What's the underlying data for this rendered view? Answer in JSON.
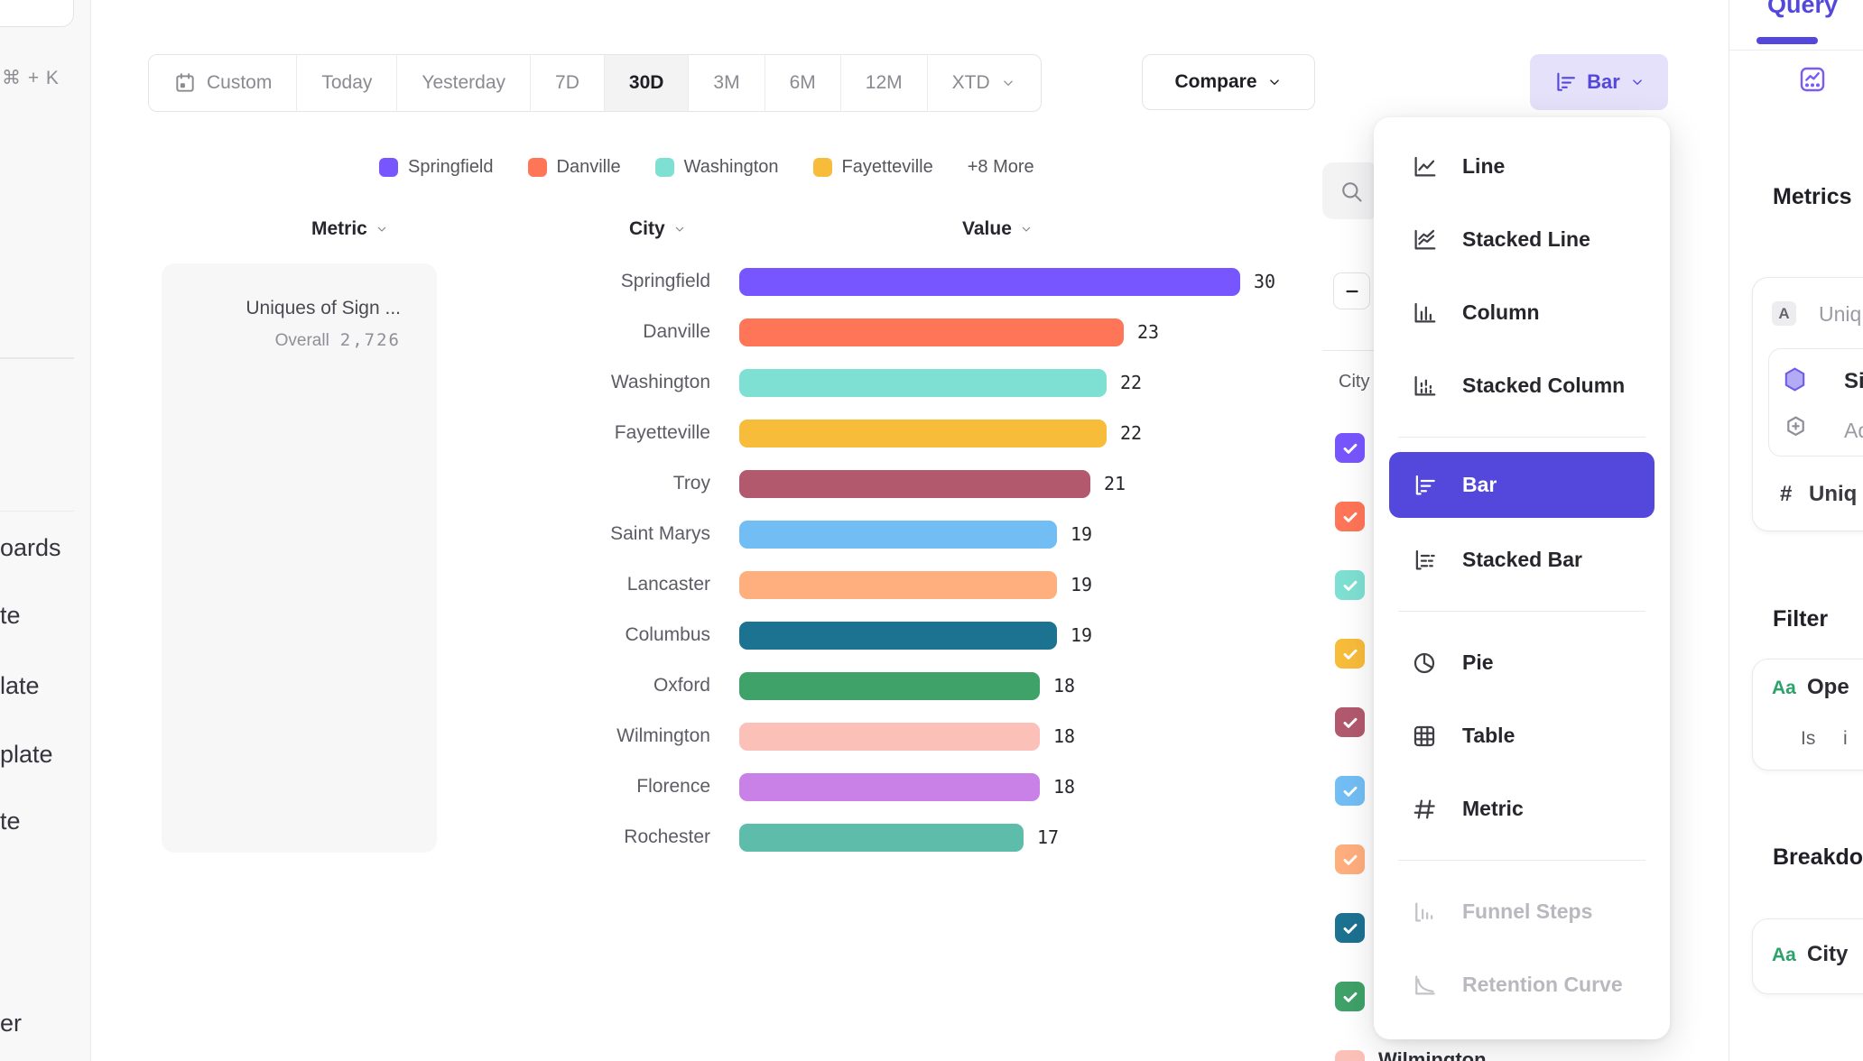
{
  "left_sidebar": {
    "shortcut_hint": "⌘ + K",
    "truncated_items": [
      "oards",
      "te",
      "late",
      "plate",
      "te",
      "er"
    ]
  },
  "toolbar": {
    "date_ranges": [
      {
        "label": "Custom",
        "icon": "calendar",
        "selected": false,
        "chevron": false
      },
      {
        "label": "Today",
        "selected": false,
        "chevron": false
      },
      {
        "label": "Yesterday",
        "selected": false,
        "chevron": false
      },
      {
        "label": "7D",
        "selected": false,
        "chevron": false
      },
      {
        "label": "30D",
        "selected": true,
        "chevron": false
      },
      {
        "label": "3M",
        "selected": false,
        "chevron": false
      },
      {
        "label": "6M",
        "selected": false,
        "chevron": false
      },
      {
        "label": "12M",
        "selected": false,
        "chevron": false
      },
      {
        "label": "XTD",
        "selected": false,
        "chevron": true
      }
    ],
    "compare_label": "Compare",
    "chart_type_label": "Bar"
  },
  "legend": {
    "items": [
      {
        "label": "Springfield",
        "color": "#7856FF"
      },
      {
        "label": "Danville",
        "color": "#FF7557"
      },
      {
        "label": "Washington",
        "color": "#7EE0D2"
      },
      {
        "label": "Fayetteville",
        "color": "#F8BC3B"
      }
    ],
    "more_label": "+8 More"
  },
  "columns": {
    "metric": "Metric",
    "city": "City",
    "value": "Value"
  },
  "metric_card": {
    "title": "Uniques of Sign ...",
    "overall_label": "Overall",
    "overall_value": "2,726"
  },
  "chart_data": {
    "type": "bar",
    "orientation": "horizontal",
    "title": "Uniques of Sign ...",
    "xlabel": "Value",
    "ylabel": "City",
    "xlim": [
      0,
      30
    ],
    "grid": false,
    "legend_position": "top",
    "overall_total": "2,726",
    "categories": [
      "Springfield",
      "Danville",
      "Washington",
      "Fayetteville",
      "Troy",
      "Saint Marys",
      "Lancaster",
      "Columbus",
      "Oxford",
      "Wilmington",
      "Florence",
      "Rochester"
    ],
    "values": [
      30,
      23,
      22,
      22,
      21,
      19,
      19,
      19,
      18,
      18,
      18,
      17
    ],
    "colors": [
      "#7856FF",
      "#FF7557",
      "#7EE0D2",
      "#F8BC3B",
      "#B2596E",
      "#72BEF4",
      "#FFAE7E",
      "#1C7291",
      "#3FA268",
      "#FBC0B8",
      "#C981E8",
      "#5EBCAB"
    ]
  },
  "series_panel": {
    "column_label": "City",
    "checkbox_colors": [
      "#7856FF",
      "#FF7557",
      "#7EE0D2",
      "#F8BC3B",
      "#B2596E",
      "#72BEF4",
      "#FFAE7E",
      "#1C7291",
      "#3FA268",
      "#FBC0B8"
    ],
    "partially_visible_row": "Wilmington"
  },
  "chart_menu": {
    "items": [
      {
        "label": "Line",
        "icon": "line",
        "state": "normal"
      },
      {
        "label": "Stacked Line",
        "icon": "stackedLine",
        "state": "normal"
      },
      {
        "label": "Column",
        "icon": "column",
        "state": "normal"
      },
      {
        "label": "Stacked Column",
        "icon": "stackedColumn",
        "state": "normal"
      },
      {
        "divider": true
      },
      {
        "label": "Bar",
        "icon": "bar",
        "state": "selected"
      },
      {
        "label": "Stacked Bar",
        "icon": "stackedBar",
        "state": "normal"
      },
      {
        "divider": true
      },
      {
        "label": "Pie",
        "icon": "pie",
        "state": "normal"
      },
      {
        "label": "Table",
        "icon": "table",
        "state": "normal"
      },
      {
        "label": "Metric",
        "icon": "hash",
        "state": "normal"
      },
      {
        "divider": true
      },
      {
        "label": "Funnel Steps",
        "icon": "funnel",
        "state": "disabled"
      },
      {
        "label": "Retention Curve",
        "icon": "retention",
        "state": "disabled"
      }
    ]
  },
  "query_panel": {
    "tab_label": "Query",
    "metrics": {
      "heading": "Metrics",
      "row_badge": "A",
      "row_label": "Uniq",
      "event_label": "Sig",
      "add_label": "Ad",
      "count_hash": "#",
      "count_label": "Uniq"
    },
    "filter": {
      "heading": "Filter",
      "badge": "Aa",
      "label": "Ope",
      "operator": "Is",
      "operand": "i"
    },
    "breakdown": {
      "heading": "Breakdo",
      "badge": "Aa",
      "label": "City"
    }
  },
  "accent_color": "#5348DB"
}
